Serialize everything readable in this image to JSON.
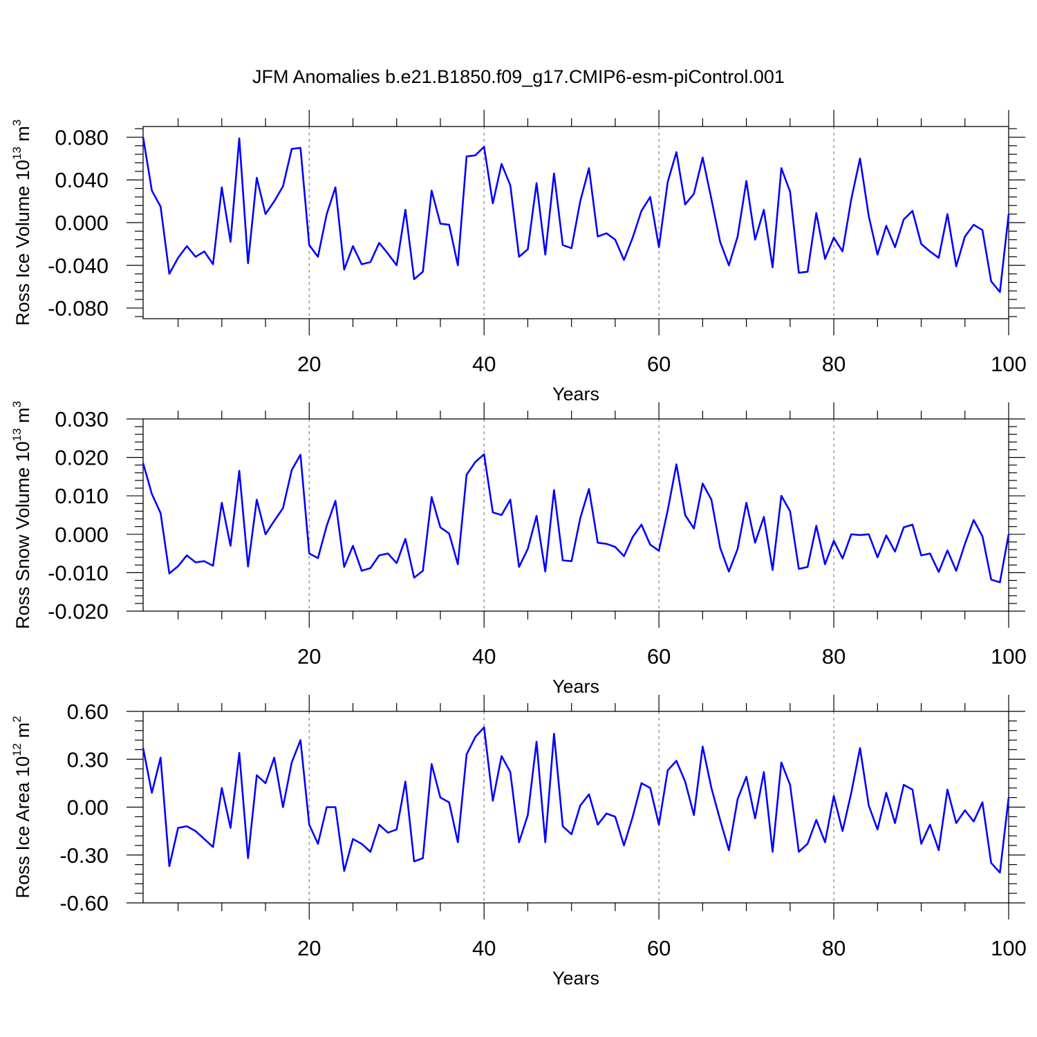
{
  "title": "JFM Anomalies b.e21.B1850.f09_g17.CMIP6-esm-piControl.001",
  "line_color": "#0000ff",
  "chart_data": [
    {
      "type": "line",
      "ylabel": "Ross Ice Volume 10",
      "ylabel_exp": "13",
      "ylabel_unit": "m",
      "ylabel_unit_exp": "3",
      "xlabel": "Years",
      "xlim": [
        1,
        100
      ],
      "ylim": [
        -0.09,
        0.09
      ],
      "yticks": [
        0.08,
        0.04,
        0.0,
        -0.04,
        -0.08
      ],
      "ytick_labels": [
        "0.080",
        "0.040",
        "0.000",
        "-0.040",
        "-0.080"
      ],
      "xticks": [
        20,
        40,
        60,
        80,
        100
      ],
      "xtick_labels": [
        "20",
        "40",
        "60",
        "80",
        "100"
      ],
      "grid_x": [
        20,
        40,
        60,
        80
      ],
      "series": [
        {
          "name": "Ross Ice Volume",
          "values": [
            0.08,
            0.03,
            0.015,
            -0.048,
            -0.033,
            -0.022,
            -0.032,
            -0.027,
            -0.039,
            0.033,
            -0.018,
            0.079,
            -0.038,
            0.042,
            0.008,
            0.02,
            0.034,
            0.069,
            0.07,
            -0.021,
            -0.032,
            0.008,
            0.033,
            -0.044,
            -0.022,
            -0.039,
            -0.037,
            -0.019,
            -0.029,
            -0.04,
            0.012,
            -0.053,
            -0.046,
            0.03,
            -0.001,
            -0.002,
            -0.04,
            0.062,
            0.063,
            0.071,
            0.018,
            0.055,
            0.035,
            -0.032,
            -0.025,
            0.037,
            -0.03,
            0.046,
            -0.021,
            -0.024,
            0.02,
            0.051,
            -0.013,
            -0.01,
            -0.016,
            -0.035,
            -0.014,
            0.011,
            0.024,
            -0.023,
            0.038,
            0.066,
            0.017,
            0.027,
            0.061,
            0.022,
            -0.018,
            -0.04,
            -0.013,
            0.039,
            -0.016,
            0.012,
            -0.042,
            0.051,
            0.029,
            -0.047,
            -0.046,
            0.009,
            -0.034,
            -0.014,
            -0.027,
            0.022,
            0.06,
            0.006,
            -0.03,
            -0.003,
            -0.023,
            0.003,
            0.011,
            -0.02,
            -0.027,
            -0.033,
            0.008,
            -0.041,
            -0.013,
            -0.002,
            -0.007,
            -0.055,
            -0.065,
            0.008
          ]
        }
      ]
    },
    {
      "type": "line",
      "ylabel": "Ross Snow Volume 10",
      "ylabel_exp": "13",
      "ylabel_unit": "m",
      "ylabel_unit_exp": "3",
      "xlabel": "Years",
      "xlim": [
        1,
        100
      ],
      "ylim": [
        -0.02,
        0.03
      ],
      "yticks": [
        0.03,
        0.02,
        0.01,
        0.0,
        -0.01,
        -0.02
      ],
      "ytick_labels": [
        "0.030",
        "0.020",
        "0.010",
        "0.000",
        "-0.010",
        "-0.020"
      ],
      "xticks": [
        20,
        40,
        60,
        80,
        100
      ],
      "xtick_labels": [
        "20",
        "40",
        "60",
        "80",
        "100"
      ],
      "grid_x": [
        20,
        40,
        60,
        80
      ],
      "series": [
        {
          "name": "Ross Snow Volume",
          "values": [
            0.0185,
            0.0105,
            0.0055,
            -0.0102,
            -0.0083,
            -0.0055,
            -0.0073,
            -0.007,
            -0.0082,
            0.0082,
            -0.003,
            0.0165,
            -0.0084,
            0.009,
            0.0,
            0.0035,
            0.0068,
            0.0167,
            0.0207,
            -0.005,
            -0.0062,
            0.0022,
            0.0087,
            -0.0085,
            -0.003,
            -0.0095,
            -0.0088,
            -0.0055,
            -0.005,
            -0.0075,
            -0.0012,
            -0.0113,
            -0.0095,
            0.0097,
            0.0018,
            0.0002,
            -0.0078,
            0.0155,
            0.0188,
            0.0208,
            0.0057,
            0.005,
            0.009,
            -0.0085,
            -0.0038,
            0.0048,
            -0.0097,
            0.0115,
            -0.0068,
            -0.007,
            0.0042,
            0.0118,
            -0.0022,
            -0.0025,
            -0.0033,
            -0.0057,
            -0.0007,
            0.0025,
            -0.0027,
            -0.0043,
            0.0062,
            0.0182,
            0.005,
            0.0015,
            0.0132,
            0.009,
            -0.0035,
            -0.0097,
            -0.0038,
            0.0082,
            -0.0022,
            0.0045,
            -0.0093,
            0.01,
            0.006,
            -0.009,
            -0.0085,
            0.0022,
            -0.0078,
            -0.0017,
            -0.0063,
            0.0,
            -0.0002,
            0.0,
            -0.006,
            -0.0003,
            -0.0045,
            0.0018,
            0.0025,
            -0.0055,
            -0.005,
            -0.0098,
            -0.0042,
            -0.0095,
            -0.0025,
            0.0037,
            -0.0005,
            -0.0118,
            -0.0125,
            0.0
          ]
        }
      ]
    },
    {
      "type": "line",
      "ylabel": "Ross Ice Area 10",
      "ylabel_exp": "12",
      "ylabel_unit": "m",
      "ylabel_unit_exp": "2",
      "xlabel": "Years",
      "xlim": [
        1,
        100
      ],
      "ylim": [
        -0.6,
        0.6
      ],
      "yticks": [
        0.6,
        0.3,
        0.0,
        -0.3,
        -0.6
      ],
      "ytick_labels": [
        "0.60",
        "0.30",
        "0.00",
        "-0.30",
        "-0.60"
      ],
      "xticks": [
        20,
        40,
        60,
        80,
        100
      ],
      "xtick_labels": [
        "20",
        "40",
        "60",
        "80",
        "100"
      ],
      "grid_x": [
        20,
        40,
        60,
        80
      ],
      "series": [
        {
          "name": "Ross Ice Area",
          "values": [
            0.37,
            0.09,
            0.31,
            -0.37,
            -0.13,
            -0.12,
            -0.15,
            -0.2,
            -0.25,
            0.12,
            -0.13,
            0.34,
            -0.32,
            0.2,
            0.15,
            0.31,
            0.0,
            0.28,
            0.42,
            -0.11,
            -0.23,
            0.0,
            0.0,
            -0.4,
            -0.2,
            -0.23,
            -0.28,
            -0.11,
            -0.16,
            -0.14,
            0.16,
            -0.34,
            -0.32,
            0.27,
            0.06,
            0.03,
            -0.22,
            0.33,
            0.44,
            0.5,
            0.04,
            0.32,
            0.22,
            -0.22,
            -0.05,
            0.41,
            -0.22,
            0.46,
            -0.12,
            -0.17,
            0.01,
            0.08,
            -0.11,
            -0.04,
            -0.06,
            -0.24,
            -0.06,
            0.15,
            0.12,
            -0.11,
            0.23,
            0.29,
            0.16,
            -0.05,
            0.38,
            0.12,
            -0.08,
            -0.27,
            0.05,
            0.19,
            -0.07,
            0.22,
            -0.28,
            0.28,
            0.14,
            -0.28,
            -0.23,
            -0.08,
            -0.22,
            0.07,
            -0.15,
            0.09,
            0.37,
            0.01,
            -0.14,
            0.09,
            -0.1,
            0.14,
            0.11,
            -0.23,
            -0.11,
            -0.27,
            0.11,
            -0.1,
            -0.02,
            -0.09,
            0.03,
            -0.35,
            -0.41,
            0.06
          ]
        }
      ]
    }
  ]
}
